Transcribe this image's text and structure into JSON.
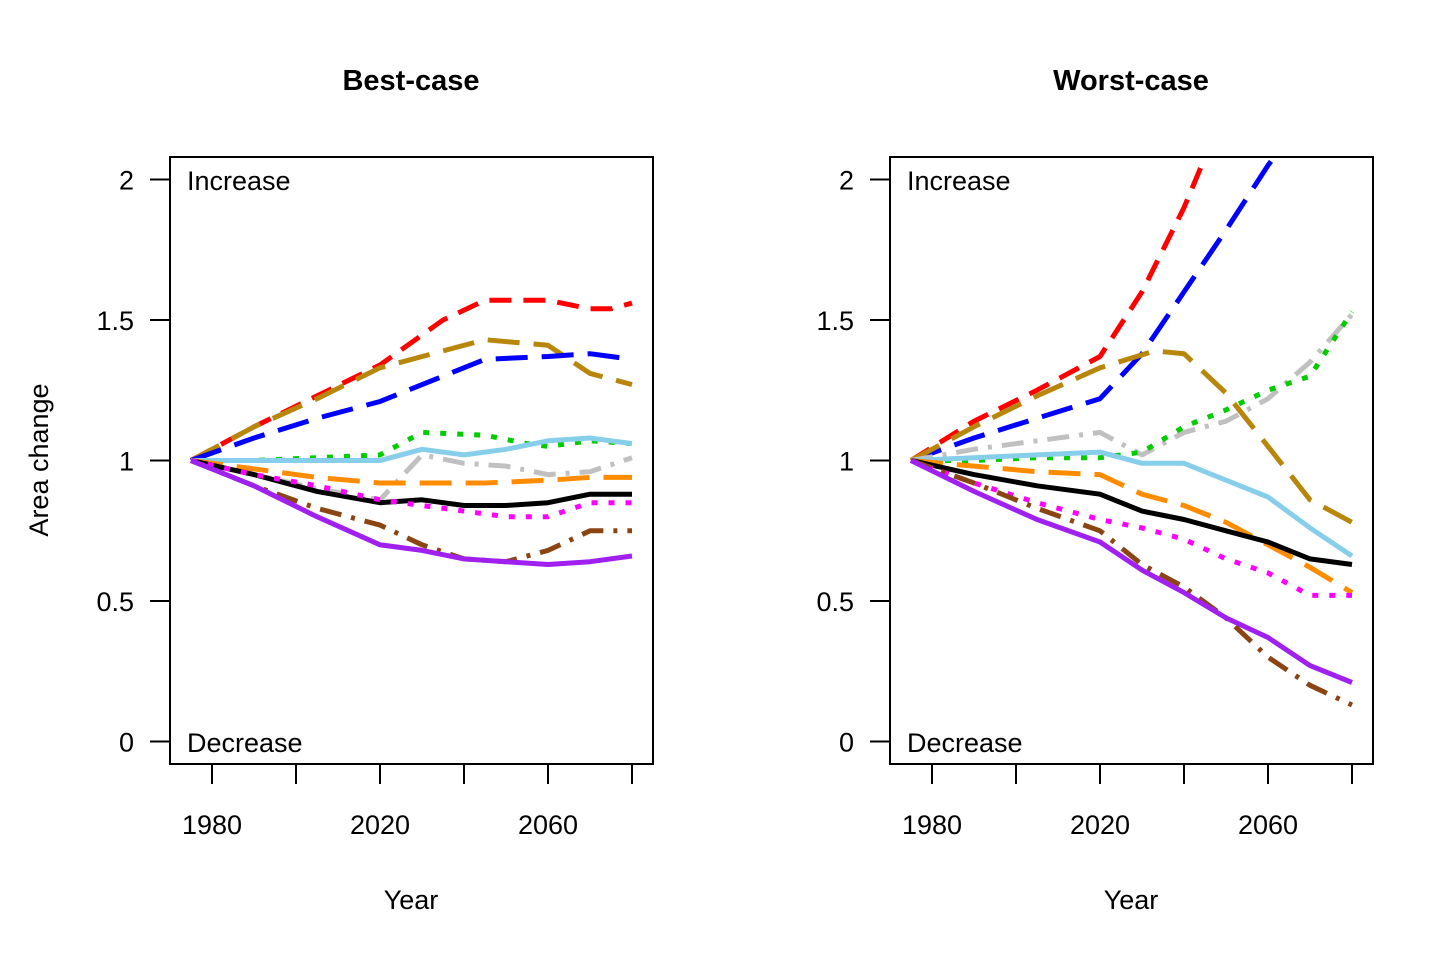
{
  "chart_data": [
    {
      "type": "line",
      "title": "Best-case",
      "xlabel": "Year",
      "ylabel": "Area change",
      "xlim": [
        1970,
        2085
      ],
      "ylim": [
        -0.08,
        2.08
      ],
      "xticks": [
        1980,
        2000,
        2020,
        2040,
        2060,
        2080
      ],
      "xticklabels": [
        "1980",
        "",
        "2020",
        "",
        "2060",
        ""
      ],
      "yticks": [
        0,
        0.5,
        1,
        1.5,
        2
      ],
      "yticklabels": [
        "0",
        "0.5",
        "1",
        "1.5",
        "2"
      ],
      "annotations": {
        "top": "Increase",
        "bottom": "Decrease"
      },
      "grid": false,
      "series": [
        {
          "color": "#ff0000",
          "dash": "dash",
          "x": [
            1975,
            1990,
            2005,
            2020,
            2035,
            2045,
            2060,
            2070,
            2075,
            2080
          ],
          "y": [
            1.0,
            1.12,
            1.23,
            1.34,
            1.5,
            1.57,
            1.57,
            1.54,
            1.54,
            1.56
          ]
        },
        {
          "color": "#b8860b",
          "dash": "longdash",
          "x": [
            1975,
            1990,
            2005,
            2020,
            2035,
            2045,
            2060,
            2070,
            2075,
            2080
          ],
          "y": [
            1.0,
            1.12,
            1.22,
            1.33,
            1.39,
            1.43,
            1.41,
            1.31,
            1.29,
            1.27
          ]
        },
        {
          "color": "#0000ff",
          "dash": "longdash",
          "x": [
            1975,
            1990,
            2005,
            2020,
            2035,
            2045,
            2060,
            2070,
            2075,
            2080
          ],
          "y": [
            1.0,
            1.08,
            1.15,
            1.21,
            1.3,
            1.36,
            1.37,
            1.38,
            1.37,
            1.36
          ]
        },
        {
          "color": "#00cc00",
          "dash": "dot",
          "x": [
            1975,
            1990,
            2005,
            2020,
            2030,
            2045,
            2055,
            2060,
            2070,
            2080
          ],
          "y": [
            1.0,
            1.0,
            1.01,
            1.02,
            1.1,
            1.09,
            1.06,
            1.05,
            1.07,
            1.06
          ]
        },
        {
          "color": "#87ceeb",
          "dash": "solid",
          "x": [
            1975,
            1990,
            2005,
            2020,
            2030,
            2040,
            2050,
            2060,
            2070,
            2080
          ],
          "y": [
            1.0,
            1.0,
            1.0,
            1.0,
            1.04,
            1.02,
            1.04,
            1.07,
            1.08,
            1.06
          ]
        },
        {
          "color": "#c0c0c0",
          "dash": "dashdot",
          "x": [
            1975,
            1990,
            2005,
            2020,
            2030,
            2040,
            2050,
            2060,
            2070,
            2080
          ],
          "y": [
            1.0,
            0.95,
            0.9,
            0.86,
            1.02,
            0.99,
            0.98,
            0.95,
            0.96,
            1.01
          ]
        },
        {
          "color": "#ff8c00",
          "dash": "longdash",
          "x": [
            1975,
            1990,
            2005,
            2020,
            2035,
            2045,
            2060,
            2070,
            2080
          ],
          "y": [
            1.0,
            0.97,
            0.94,
            0.92,
            0.92,
            0.92,
            0.93,
            0.94,
            0.94
          ]
        },
        {
          "color": "#000000",
          "dash": "solid",
          "x": [
            1975,
            1990,
            2005,
            2020,
            2030,
            2040,
            2050,
            2060,
            2070,
            2080
          ],
          "y": [
            1.0,
            0.95,
            0.89,
            0.85,
            0.86,
            0.84,
            0.84,
            0.85,
            0.88,
            0.88
          ]
        },
        {
          "color": "#ff00ff",
          "dash": "dot",
          "x": [
            1975,
            1990,
            2005,
            2020,
            2030,
            2040,
            2050,
            2060,
            2070,
            2080
          ],
          "y": [
            1.0,
            0.95,
            0.91,
            0.86,
            0.84,
            0.82,
            0.8,
            0.8,
            0.85,
            0.85
          ]
        },
        {
          "color": "#8b4513",
          "dash": "dashdot",
          "x": [
            1975,
            1990,
            2005,
            2020,
            2030,
            2040,
            2050,
            2060,
            2070,
            2080
          ],
          "y": [
            1.0,
            0.91,
            0.83,
            0.77,
            0.7,
            0.65,
            0.64,
            0.68,
            0.75,
            0.75
          ]
        },
        {
          "color": "#a020f0",
          "dash": "solid",
          "x": [
            1975,
            1990,
            2005,
            2020,
            2030,
            2040,
            2050,
            2060,
            2070,
            2080
          ],
          "y": [
            1.0,
            0.91,
            0.8,
            0.7,
            0.68,
            0.65,
            0.64,
            0.63,
            0.64,
            0.66
          ]
        }
      ]
    },
    {
      "type": "line",
      "title": "Worst-case",
      "xlabel": "Year",
      "ylabel": "",
      "xlim": [
        1970,
        2085
      ],
      "ylim": [
        -0.08,
        2.08
      ],
      "xticks": [
        1980,
        2000,
        2020,
        2040,
        2060,
        2080
      ],
      "xticklabels": [
        "1980",
        "",
        "2020",
        "",
        "2060",
        ""
      ],
      "yticks": [
        0,
        0.5,
        1,
        1.5,
        2
      ],
      "yticklabels": [
        "0",
        "0.5",
        "1",
        "1.5",
        "2"
      ],
      "annotations": {
        "top": "Increase",
        "bottom": "Decrease"
      },
      "grid": false,
      "series": [
        {
          "color": "#ff0000",
          "dash": "dash",
          "x": [
            1975,
            1990,
            2005,
            2020,
            2030,
            2040,
            2047
          ],
          "y": [
            1.0,
            1.14,
            1.25,
            1.37,
            1.6,
            1.9,
            2.15
          ]
        },
        {
          "color": "#0000ff",
          "dash": "longdash",
          "x": [
            1975,
            1990,
            2005,
            2020,
            2030,
            2040,
            2050,
            2060,
            2065
          ],
          "y": [
            1.0,
            1.08,
            1.15,
            1.22,
            1.38,
            1.6,
            1.82,
            2.05,
            2.15
          ]
        },
        {
          "color": "#b8860b",
          "dash": "longdash",
          "x": [
            1975,
            1990,
            2005,
            2020,
            2033,
            2040,
            2050,
            2060,
            2070,
            2080
          ],
          "y": [
            1.0,
            1.12,
            1.23,
            1.33,
            1.39,
            1.38,
            1.24,
            1.05,
            0.86,
            0.78
          ]
        },
        {
          "color": "#c0c0c0",
          "dash": "dashdot",
          "x": [
            1975,
            1990,
            2005,
            2020,
            2030,
            2040,
            2050,
            2060,
            2070,
            2080
          ],
          "y": [
            1.0,
            1.04,
            1.07,
            1.1,
            1.02,
            1.1,
            1.14,
            1.22,
            1.35,
            1.52
          ]
        },
        {
          "color": "#00cc00",
          "dash": "dot",
          "x": [
            1975,
            1990,
            2005,
            2020,
            2030,
            2040,
            2050,
            2060,
            2070,
            2080
          ],
          "y": [
            1.0,
            1.0,
            1.01,
            1.01,
            1.03,
            1.12,
            1.18,
            1.25,
            1.3,
            1.53
          ]
        },
        {
          "color": "#87ceeb",
          "dash": "solid",
          "x": [
            1975,
            1990,
            2005,
            2020,
            2030,
            2040,
            2050,
            2060,
            2070,
            2080
          ],
          "y": [
            1.0,
            1.01,
            1.02,
            1.03,
            0.99,
            0.99,
            0.93,
            0.87,
            0.76,
            0.66
          ]
        },
        {
          "color": "#ff8c00",
          "dash": "longdash",
          "x": [
            1975,
            1990,
            2005,
            2020,
            2030,
            2040,
            2050,
            2060,
            2070,
            2080
          ],
          "y": [
            1.0,
            0.98,
            0.96,
            0.95,
            0.88,
            0.84,
            0.78,
            0.7,
            0.62,
            0.53
          ]
        },
        {
          "color": "#000000",
          "dash": "solid",
          "x": [
            1975,
            1990,
            2005,
            2020,
            2030,
            2040,
            2050,
            2060,
            2070,
            2080
          ],
          "y": [
            1.0,
            0.95,
            0.91,
            0.88,
            0.82,
            0.79,
            0.75,
            0.71,
            0.65,
            0.63
          ]
        },
        {
          "color": "#ff00ff",
          "dash": "dot",
          "x": [
            1975,
            1990,
            2005,
            2020,
            2030,
            2040,
            2050,
            2060,
            2070,
            2080
          ],
          "y": [
            1.0,
            0.92,
            0.85,
            0.79,
            0.76,
            0.72,
            0.65,
            0.6,
            0.52,
            0.52
          ]
        },
        {
          "color": "#8b4513",
          "dash": "dashdot",
          "x": [
            1975,
            1990,
            2005,
            2020,
            2030,
            2040,
            2050,
            2060,
            2070,
            2080
          ],
          "y": [
            1.0,
            0.92,
            0.83,
            0.75,
            0.63,
            0.55,
            0.44,
            0.3,
            0.2,
            0.13
          ]
        },
        {
          "color": "#a020f0",
          "dash": "solid",
          "x": [
            1975,
            1990,
            2005,
            2020,
            2030,
            2040,
            2050,
            2060,
            2070,
            2080
          ],
          "y": [
            1.0,
            0.89,
            0.79,
            0.71,
            0.61,
            0.53,
            0.44,
            0.37,
            0.27,
            0.21
          ]
        }
      ]
    }
  ]
}
